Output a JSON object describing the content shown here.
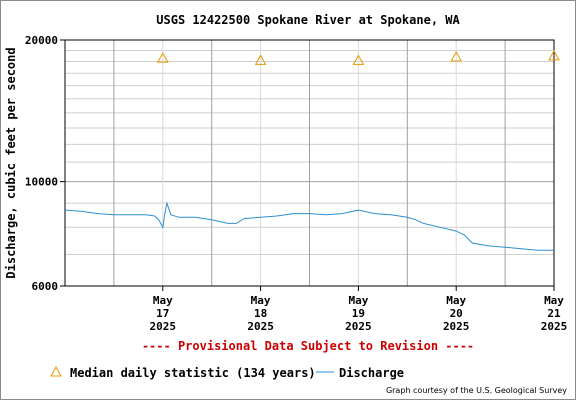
{
  "chart_data": {
    "type": "line",
    "title": "USGS 12422500 Spokane River at Spokane, WA",
    "ylabel": "Discharge, cubic feet per second",
    "y_scale": "log",
    "ylim": [
      6000,
      20000
    ],
    "y_ticks": [
      6000,
      10000,
      20000
    ],
    "xlim": [
      "2025-05-16T12:00",
      "2025-05-21T12:00"
    ],
    "x_ticks": [
      {
        "date": "2025-05-17",
        "month": "May",
        "day": "17",
        "year": "2025"
      },
      {
        "date": "2025-05-18",
        "month": "May",
        "day": "18",
        "year": "2025"
      },
      {
        "date": "2025-05-19",
        "month": "May",
        "day": "19",
        "year": "2025"
      },
      {
        "date": "2025-05-20",
        "month": "May",
        "day": "20",
        "year": "2025"
      },
      {
        "date": "2025-05-21",
        "month": "May",
        "day": "21",
        "year": "2025"
      }
    ],
    "series": [
      {
        "name": "Discharge",
        "color": "#2b8fd0",
        "points": [
          [
            "2025-05-16T12:00",
            8700
          ],
          [
            "2025-05-16T16:00",
            8650
          ],
          [
            "2025-05-16T20:00",
            8550
          ],
          [
            "2025-05-17T00:00",
            8500
          ],
          [
            "2025-05-17T04:00",
            8500
          ],
          [
            "2025-05-17T08:00",
            8500
          ],
          [
            "2025-05-17T10:00",
            8450
          ],
          [
            "2025-05-17T11:00",
            8300
          ],
          [
            "2025-05-17T12:00",
            8000
          ],
          [
            "2025-05-17T12:30",
            8550
          ],
          [
            "2025-05-17T13:00",
            9000
          ],
          [
            "2025-05-17T14:00",
            8500
          ],
          [
            "2025-05-17T16:00",
            8400
          ],
          [
            "2025-05-17T20:00",
            8400
          ],
          [
            "2025-05-18T00:00",
            8300
          ],
          [
            "2025-05-18T04:00",
            8150
          ],
          [
            "2025-05-18T06:00",
            8150
          ],
          [
            "2025-05-18T08:00",
            8350
          ],
          [
            "2025-05-18T12:00",
            8400
          ],
          [
            "2025-05-18T16:00",
            8450
          ],
          [
            "2025-05-18T20:00",
            8550
          ],
          [
            "2025-05-19T00:00",
            8550
          ],
          [
            "2025-05-19T04:00",
            8500
          ],
          [
            "2025-05-19T08:00",
            8550
          ],
          [
            "2025-05-19T12:00",
            8700
          ],
          [
            "2025-05-19T16:00",
            8550
          ],
          [
            "2025-05-19T20:00",
            8500
          ],
          [
            "2025-05-20T00:00",
            8400
          ],
          [
            "2025-05-20T02:00",
            8300
          ],
          [
            "2025-05-20T04:00",
            8150
          ],
          [
            "2025-05-20T08:00",
            8000
          ],
          [
            "2025-05-20T12:00",
            7850
          ],
          [
            "2025-05-20T14:00",
            7700
          ],
          [
            "2025-05-20T16:00",
            7400
          ],
          [
            "2025-05-20T20:00",
            7300
          ],
          [
            "2025-05-21T00:00",
            7250
          ],
          [
            "2025-05-21T04:00",
            7200
          ],
          [
            "2025-05-21T08:00",
            7150
          ],
          [
            "2025-05-21T12:00",
            7150
          ]
        ]
      },
      {
        "name": "Median daily statistic (134 years)",
        "color": "#e69a00",
        "marker": "triangle",
        "points": [
          [
            "2025-05-17T12:00",
            18300
          ],
          [
            "2025-05-18T12:00",
            18100
          ],
          [
            "2025-05-19T12:00",
            18100
          ],
          [
            "2025-05-20T12:00",
            18400
          ],
          [
            "2025-05-21T12:00",
            18500
          ]
        ]
      }
    ],
    "annotation": "---- Provisional Data Subject to Revision ----",
    "legend": {
      "median": "Median daily statistic (134 years)",
      "discharge": "Discharge",
      "placement": "bottom-left"
    },
    "credit": "Graph courtesy of the U.S. Geological Survey",
    "grid": true
  }
}
